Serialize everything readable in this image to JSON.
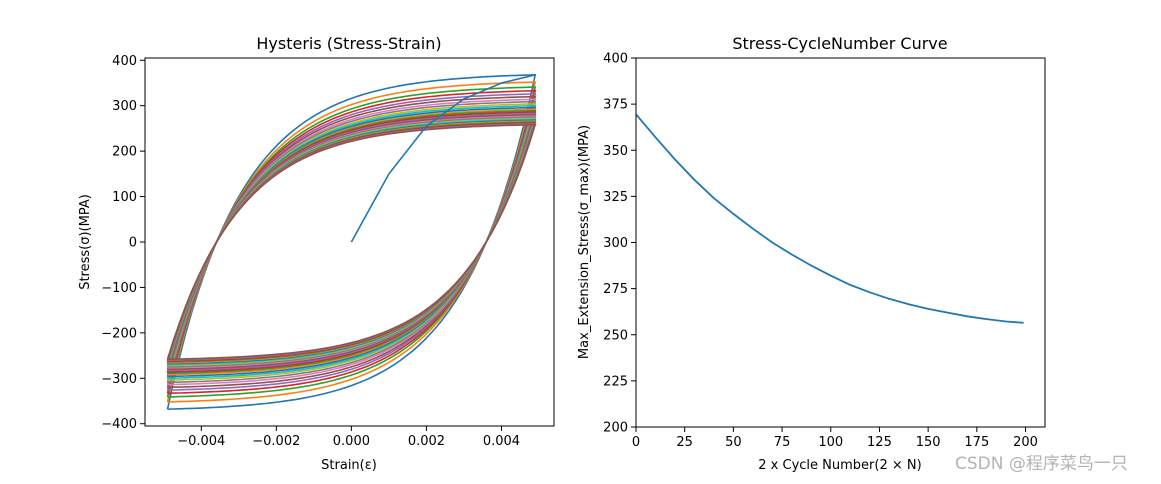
{
  "watermark": "CSDN @程序菜鸟一只",
  "palette": [
    "#1f77b4",
    "#ff7f0e",
    "#2ca02c",
    "#d62728",
    "#9467bd",
    "#8c564b",
    "#e377c2",
    "#7f7f7f",
    "#bcbd22",
    "#17becf"
  ],
  "chart_data": [
    {
      "type": "line",
      "title": "Hysteris (Stress-Strain)",
      "xlabel": "Strain(ε)",
      "ylabel": "Stress(σ)(MPA)",
      "xlim": [
        -0.0055,
        0.0054
      ],
      "ylim": [
        -405,
        405
      ],
      "xticks": [
        -0.004,
        -0.002,
        0.0,
        0.002,
        0.004
      ],
      "xtick_labels": [
        "−0.004",
        "−0.002",
        "0.000",
        "0.002",
        "0.004"
      ],
      "yticks": [
        -400,
        -300,
        -200,
        -100,
        0,
        100,
        200,
        300,
        400
      ],
      "ytick_labels": [
        "−400",
        "−300",
        "−200",
        "−100",
        "0",
        "100",
        "200",
        "300",
        "400"
      ],
      "strain_amplitude": 0.0049,
      "initial_loading": {
        "x": [
          0.0,
          0.001,
          0.002,
          0.003,
          0.004,
          0.0049
        ],
        "y": [
          0,
          150,
          255,
          315,
          350,
          368
        ]
      },
      "loop_peak_stress": [
        368,
        352,
        341,
        333,
        326,
        320,
        314,
        309,
        304,
        300,
        296,
        292,
        289,
        286,
        283,
        280,
        277,
        275,
        272,
        270,
        268,
        266,
        264,
        262,
        260,
        258
      ],
      "grid": false,
      "legend": "none"
    },
    {
      "type": "line",
      "title": "Stress-CycleNumber Curve",
      "xlabel": "2 x Cycle Number(2 × N)",
      "ylabel": "Max_Extension_Stress(σ_max)(MPA)",
      "xlim": [
        0,
        210
      ],
      "ylim": [
        200,
        400
      ],
      "xticks": [
        0,
        25,
        50,
        75,
        100,
        125,
        150,
        175,
        200
      ],
      "xtick_labels": [
        "0",
        "25",
        "50",
        "75",
        "100",
        "125",
        "150",
        "175",
        "200"
      ],
      "yticks": [
        200,
        225,
        250,
        275,
        300,
        325,
        350,
        375,
        400
      ],
      "ytick_labels": [
        "200",
        "225",
        "250",
        "275",
        "300",
        "325",
        "350",
        "375",
        "400"
      ],
      "x": [
        0,
        10,
        20,
        30,
        40,
        50,
        60,
        70,
        80,
        90,
        100,
        110,
        120,
        130,
        140,
        150,
        160,
        170,
        180,
        190,
        199
      ],
      "y": [
        369.5,
        357,
        345,
        334,
        324,
        315.5,
        307.5,
        300,
        293.5,
        287.5,
        282,
        277,
        273,
        269.5,
        266.5,
        264,
        262,
        260,
        258.5,
        257.2,
        256.5
      ],
      "grid": false,
      "legend": "none"
    }
  ]
}
